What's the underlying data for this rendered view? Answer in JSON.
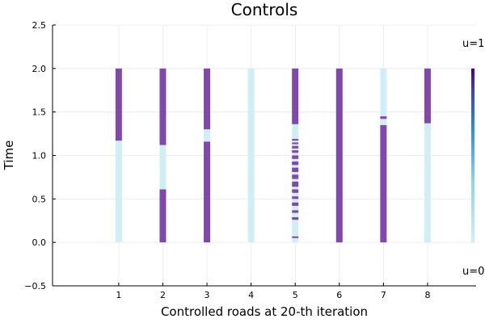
{
  "chart_data": {
    "type": "heatmap",
    "title": "Controls",
    "xlabel": "Controlled roads at 20-th iteration",
    "ylabel": "Time",
    "xlim": [
      -0.5,
      9.1
    ],
    "ylim": [
      -0.5,
      2.5
    ],
    "x_ticks": [
      "1",
      "2",
      "3",
      "4",
      "5",
      "6",
      "7",
      "8"
    ],
    "y_ticks": [
      "−0.5",
      "0.0",
      "0.5",
      "1.0",
      "1.5",
      "2.0",
      "2.5"
    ],
    "y_tick_values": [
      -0.5,
      0.0,
      0.5,
      1.0,
      1.5,
      2.0,
      2.5
    ],
    "grid": true,
    "legend": "none",
    "colorbar": {
      "max_label": "u=1",
      "min_label": "u=0",
      "low_color": "#d1eef7",
      "high_color": "#4b0082"
    },
    "colors": {
      "on": "#8147ab",
      "off": "#d1eef7"
    },
    "roads": [
      {
        "road": 1,
        "segments": [
          {
            "from": 0.0,
            "to": 1.17,
            "u": 0
          },
          {
            "from": 1.17,
            "to": 2.0,
            "u": 1
          }
        ]
      },
      {
        "road": 2,
        "segments": [
          {
            "from": 0.0,
            "to": 0.61,
            "u": 1
          },
          {
            "from": 0.61,
            "to": 1.12,
            "u": 0
          },
          {
            "from": 1.12,
            "to": 2.0,
            "u": 1
          }
        ]
      },
      {
        "road": 3,
        "segments": [
          {
            "from": 0.0,
            "to": 1.16,
            "u": 1
          },
          {
            "from": 1.16,
            "to": 1.3,
            "u": 0
          },
          {
            "from": 1.3,
            "to": 2.0,
            "u": 1
          }
        ]
      },
      {
        "road": 4,
        "segments": [
          {
            "from": 0.0,
            "to": 2.0,
            "u": 0
          }
        ]
      },
      {
        "road": 5,
        "segments": [
          {
            "from": 0.0,
            "to": 0.05,
            "u": 0
          },
          {
            "from": 0.05,
            "to": 0.07,
            "u": 1
          },
          {
            "from": 0.07,
            "to": 0.26,
            "u": 0
          },
          {
            "from": 0.26,
            "to": 0.29,
            "u": 1
          },
          {
            "from": 0.29,
            "to": 0.34,
            "u": 0
          },
          {
            "from": 0.34,
            "to": 0.37,
            "u": 1
          },
          {
            "from": 0.37,
            "to": 0.42,
            "u": 0
          },
          {
            "from": 0.42,
            "to": 0.46,
            "u": 1
          },
          {
            "from": 0.46,
            "to": 0.5,
            "u": 0
          },
          {
            "from": 0.5,
            "to": 0.53,
            "u": 1
          },
          {
            "from": 0.53,
            "to": 0.57,
            "u": 0
          },
          {
            "from": 0.57,
            "to": 0.61,
            "u": 1
          },
          {
            "from": 0.61,
            "to": 0.64,
            "u": 0
          },
          {
            "from": 0.64,
            "to": 0.7,
            "u": 1
          },
          {
            "from": 0.7,
            "to": 0.73,
            "u": 0
          },
          {
            "from": 0.73,
            "to": 0.78,
            "u": 1
          },
          {
            "from": 0.78,
            "to": 0.81,
            "u": 0
          },
          {
            "from": 0.81,
            "to": 0.86,
            "u": 1
          },
          {
            "from": 0.86,
            "to": 0.89,
            "u": 0
          },
          {
            "from": 0.89,
            "to": 0.93,
            "u": 1
          },
          {
            "from": 0.93,
            "to": 0.96,
            "u": 0
          },
          {
            "from": 0.96,
            "to": 1.0,
            "u": 1
          },
          {
            "from": 1.0,
            "to": 1.03,
            "u": 0
          },
          {
            "from": 1.03,
            "to": 1.06,
            "u": 1
          },
          {
            "from": 1.06,
            "to": 1.08,
            "u": 0
          },
          {
            "from": 1.08,
            "to": 1.11,
            "u": 1
          },
          {
            "from": 1.11,
            "to": 1.13,
            "u": 0
          },
          {
            "from": 1.13,
            "to": 1.15,
            "u": 1
          },
          {
            "from": 1.15,
            "to": 1.17,
            "u": 0
          },
          {
            "from": 1.17,
            "to": 1.19,
            "u": 1
          },
          {
            "from": 1.19,
            "to": 1.36,
            "u": 0
          },
          {
            "from": 1.36,
            "to": 2.0,
            "u": 1
          }
        ]
      },
      {
        "road": 6,
        "segments": [
          {
            "from": 0.0,
            "to": 2.0,
            "u": 1
          }
        ]
      },
      {
        "road": 7,
        "segments": [
          {
            "from": 0.0,
            "to": 1.35,
            "u": 1
          },
          {
            "from": 1.35,
            "to": 1.42,
            "u": 0
          },
          {
            "from": 1.42,
            "to": 1.45,
            "u": 1
          },
          {
            "from": 1.45,
            "to": 2.0,
            "u": 0
          }
        ]
      },
      {
        "road": 8,
        "segments": [
          {
            "from": 0.0,
            "to": 1.37,
            "u": 0
          },
          {
            "from": 1.37,
            "to": 2.0,
            "u": 1
          }
        ]
      }
    ]
  }
}
